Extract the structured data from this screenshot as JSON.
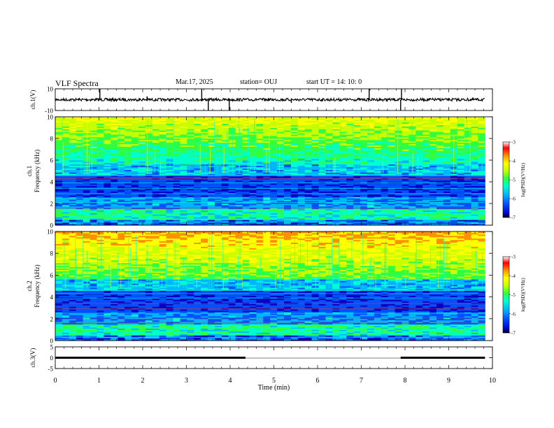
{
  "header": {
    "title": "VLF Spectra",
    "date": "Mar.17, 2025",
    "station": "station= OUJ",
    "start": "start  UT =   14: 10: 0"
  },
  "colors": {
    "colormap": [
      "#000000",
      "#0000c8",
      "#0050ff",
      "#00b4ff",
      "#00ffd0",
      "#30ff40",
      "#c8ff00",
      "#ffff00",
      "#ff9000",
      "#ff0000",
      "#ffffff"
    ]
  },
  "chart_data": [
    {
      "type": "line",
      "ylabel": "ch.1(V)",
      "ylim": [
        -10,
        10
      ],
      "yticks": [
        "10",
        "-10"
      ],
      "baseline": 0,
      "spikes": [
        {
          "x": 1.02,
          "y": 10
        },
        {
          "x": 3.35,
          "y": 10
        },
        {
          "x": 3.5,
          "y": -10
        },
        {
          "x": 3.98,
          "y": -10
        },
        {
          "x": 7.18,
          "y": 10
        },
        {
          "x": 7.9,
          "y": -10
        },
        {
          "x": 7.92,
          "y": 10
        },
        {
          "x": 2.1,
          "y": 3
        },
        {
          "x": 5.4,
          "y": -3
        }
      ]
    },
    {
      "type": "heatmap",
      "ylabel": "ch.1 Frequency (kHz)",
      "ylim": [
        0,
        10
      ],
      "yticks": [
        "0",
        "2",
        "4",
        "6",
        "8",
        "10"
      ],
      "colorbar": {
        "label": "log(PSD)(V²/Hz)",
        "range": [
          -7,
          -3
        ],
        "ticks": [
          "-3",
          "-4",
          "-5",
          "-6",
          "-7"
        ]
      }
    },
    {
      "type": "heatmap",
      "ylabel": "ch.2 Frequency (kHz)",
      "ylim": [
        0,
        10
      ],
      "yticks": [
        "0",
        "2",
        "4",
        "6",
        "8",
        "10"
      ],
      "colorbar": {
        "label": "log(PSD)(V²/Hz)",
        "range": [
          -7,
          -3
        ],
        "ticks": [
          "-3",
          "-4",
          "-5",
          "-6",
          "-7"
        ]
      }
    },
    {
      "type": "line",
      "ylabel": "ch.3(V)",
      "ylim": [
        -5,
        5
      ],
      "yticks": [
        "5",
        "0",
        "-5"
      ],
      "segments": [
        {
          "x0": 0,
          "x1": 4.35,
          "y": 0
        },
        {
          "x0": 7.9,
          "x1": 9.83,
          "y": 0
        }
      ],
      "xlabel": "Time (min)",
      "xlim": [
        0,
        10
      ],
      "xticks": [
        "0",
        "1",
        "2",
        "3",
        "4",
        "5",
        "6",
        "7",
        "8",
        "9",
        "10"
      ]
    }
  ]
}
